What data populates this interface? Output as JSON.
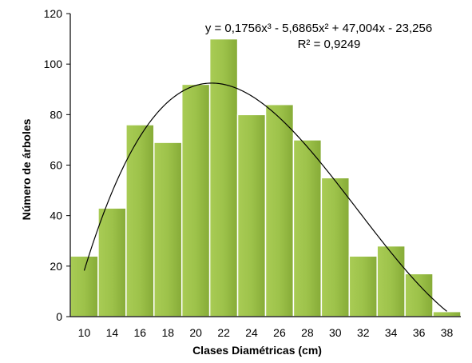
{
  "chart_data": {
    "type": "bar",
    "categories": [
      "10",
      "14",
      "16",
      "18",
      "20",
      "22",
      "24",
      "26",
      "28",
      "30",
      "32",
      "34",
      "36",
      "38"
    ],
    "values": [
      24,
      43,
      76,
      69,
      92,
      110,
      80,
      84,
      70,
      55,
      24,
      28,
      17,
      2
    ],
    "xlabel": "Clases Diamétricas (cm)",
    "ylabel": "Número de árboles",
    "ylim": [
      0,
      120
    ],
    "yticks": [
      0,
      20,
      40,
      60,
      80,
      100,
      120
    ],
    "grid": false,
    "bar_color": "#9DC24A",
    "bar_edge_color": "#ffffff",
    "trendline": {
      "type": "polynomial",
      "order": 3,
      "coefficients": [
        0.1756,
        -5.6865,
        47.004,
        -23.256
      ],
      "equation": "y = 0,1756x³ - 5,6865x² + 47,004x - 23,256",
      "r_squared": "R² = 0,9249",
      "color": "#000000"
    }
  }
}
